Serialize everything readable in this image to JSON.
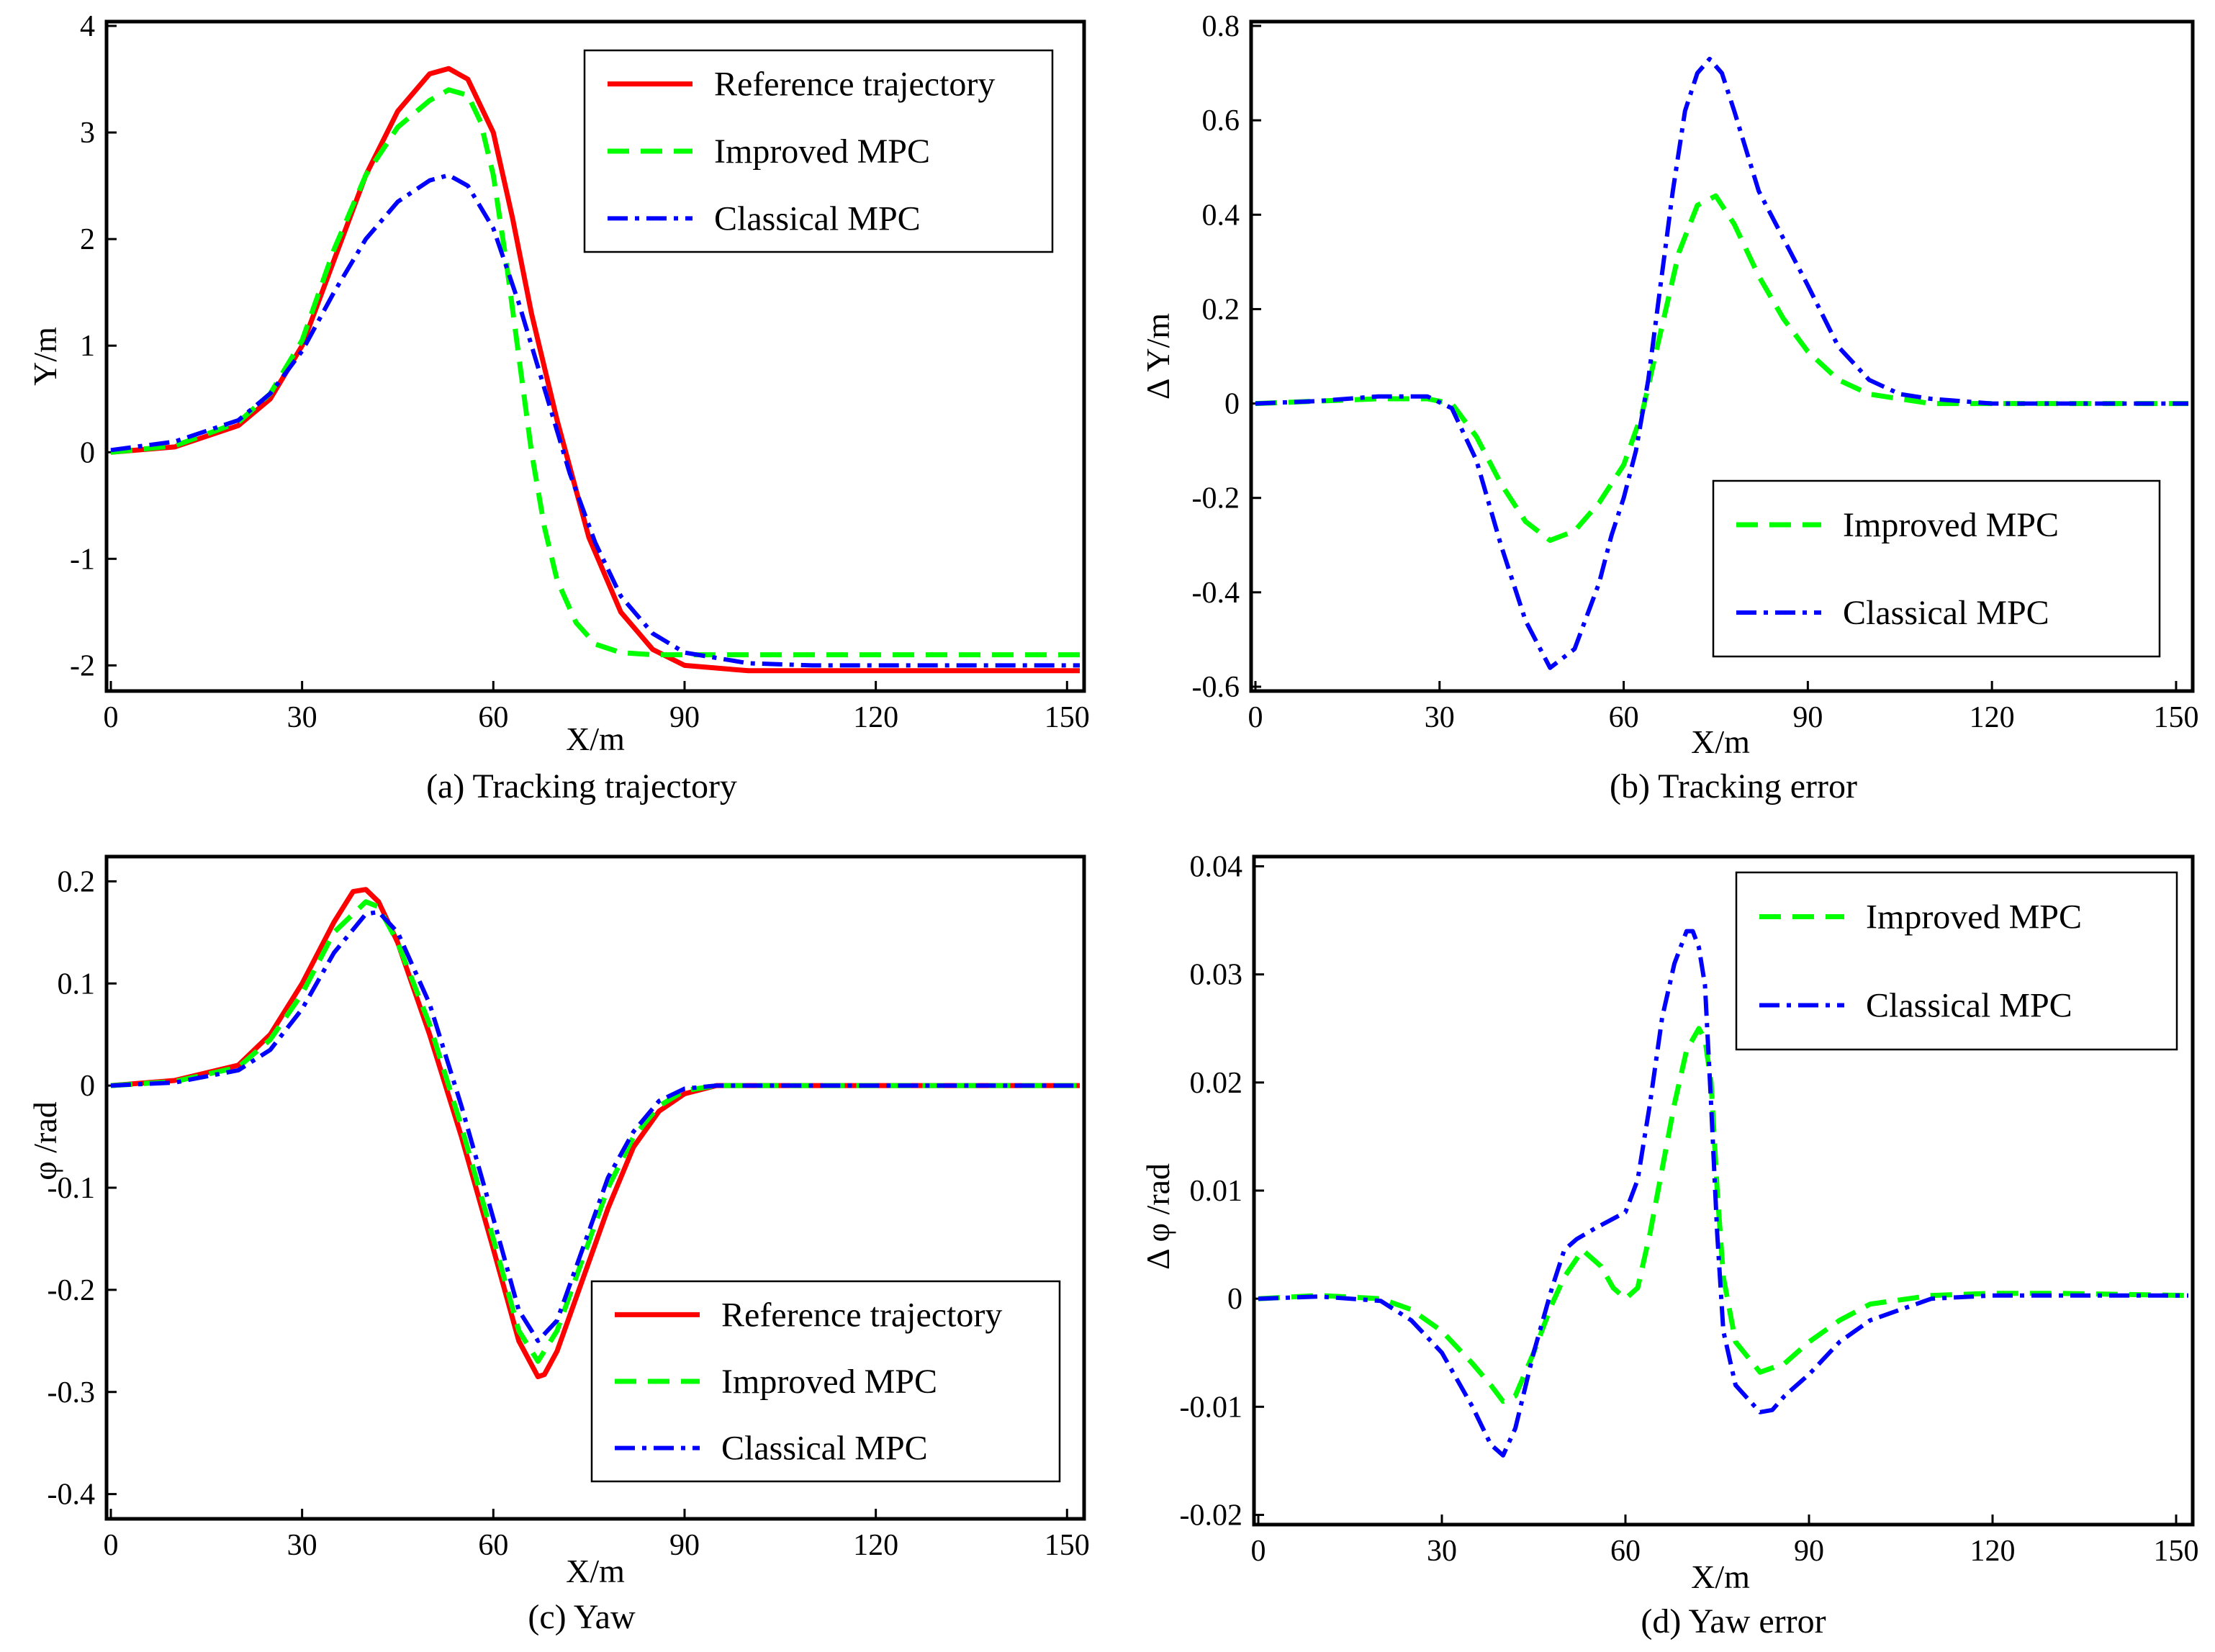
{
  "figure": {
    "series_styles": [
      {
        "name": "Reference trajectory",
        "color": "#ff0000",
        "dash": "solid"
      },
      {
        "name": "Improved MPC",
        "color": "#00ff00",
        "dash": "dash"
      },
      {
        "name": "Classical MPC",
        "color": "#0000ff",
        "dash": "dashdot"
      }
    ]
  },
  "chart_data": [
    {
      "id": "a",
      "type": "line",
      "caption": "(a) Tracking trajectory",
      "xlabel": "X/m",
      "ylabel": "Y/m",
      "xlim": [
        0,
        152
      ],
      "ylim": [
        -2.2,
        4
      ],
      "xticks": [
        0,
        30,
        60,
        90,
        120,
        150
      ],
      "yticks": [
        -2,
        -1,
        0,
        1,
        2,
        3,
        4
      ],
      "ytick_labels": [
        "-2",
        "-1",
        "0",
        "1",
        "2",
        "3",
        "4"
      ],
      "legend": {
        "entries": [
          "Reference trajectory",
          "Improved MPC",
          "Classical MPC"
        ],
        "position": "top-right"
      },
      "series": [
        {
          "name": "Reference trajectory",
          "x": [
            0,
            10,
            20,
            25,
            30,
            35,
            40,
            45,
            50,
            53,
            56,
            60,
            63,
            66,
            70,
            75,
            80,
            85,
            90,
            100,
            110,
            120,
            152
          ],
          "y": [
            0,
            0.05,
            0.25,
            0.5,
            1.0,
            1.8,
            2.6,
            3.2,
            3.55,
            3.6,
            3.5,
            3.0,
            2.2,
            1.3,
            0.3,
            -0.8,
            -1.5,
            -1.85,
            -2.0,
            -2.05,
            -2.05,
            -2.05,
            -2.05
          ]
        },
        {
          "name": "Improved MPC",
          "x": [
            0,
            10,
            20,
            25,
            30,
            35,
            40,
            45,
            50,
            53,
            56,
            58,
            60,
            62,
            64,
            66,
            68,
            70,
            73,
            76,
            80,
            85,
            90,
            100,
            110,
            120,
            152
          ],
          "y": [
            0,
            0.06,
            0.28,
            0.55,
            1.05,
            1.9,
            2.6,
            3.05,
            3.3,
            3.4,
            3.35,
            3.1,
            2.6,
            1.8,
            0.9,
            0.0,
            -0.7,
            -1.2,
            -1.6,
            -1.8,
            -1.88,
            -1.9,
            -1.9,
            -1.9,
            -1.9,
            -1.9,
            -1.9
          ]
        },
        {
          "name": "Classical MPC",
          "x": [
            0,
            10,
            20,
            25,
            30,
            35,
            40,
            45,
            50,
            53,
            56,
            60,
            64,
            68,
            72,
            76,
            80,
            85,
            90,
            100,
            110,
            120,
            152
          ],
          "y": [
            0.02,
            0.1,
            0.3,
            0.55,
            0.95,
            1.5,
            2.0,
            2.35,
            2.55,
            2.6,
            2.5,
            2.1,
            1.4,
            0.6,
            -0.2,
            -0.85,
            -1.35,
            -1.7,
            -1.88,
            -1.98,
            -2.0,
            -2.0,
            -2.0
          ]
        }
      ]
    },
    {
      "id": "b",
      "type": "line",
      "caption": "(b) Tracking error",
      "xlabel": "X/m",
      "ylabel": "Δ Y/m",
      "xlim": [
        0,
        152
      ],
      "ylim": [
        -0.6,
        0.8
      ],
      "xticks": [
        0,
        30,
        60,
        90,
        120,
        150
      ],
      "yticks": [
        -0.6,
        -0.4,
        -0.2,
        0,
        0.2,
        0.4,
        0.6,
        0.8
      ],
      "ytick_labels": [
        "-0.6",
        "-0.4",
        "-0.2",
        "0",
        "0.2",
        "0.4",
        "0.6",
        "0.8"
      ],
      "legend": {
        "entries": [
          "Improved MPC",
          "Classical MPC"
        ],
        "position": "bottom-right"
      },
      "series": [
        {
          "name": "Improved MPC",
          "x": [
            0,
            10,
            20,
            28,
            32,
            36,
            40,
            44,
            48,
            52,
            56,
            60,
            63,
            66,
            69,
            72,
            75,
            78,
            82,
            86,
            90,
            95,
            100,
            110,
            120,
            152
          ],
          "y": [
            0,
            0.005,
            0.01,
            0.01,
            0,
            -0.07,
            -0.17,
            -0.25,
            -0.29,
            -0.27,
            -0.21,
            -0.13,
            -0.02,
            0.15,
            0.32,
            0.42,
            0.44,
            0.38,
            0.27,
            0.18,
            0.11,
            0.05,
            0.02,
            0,
            0,
            0
          ]
        },
        {
          "name": "Classical MPC",
          "x": [
            0,
            10,
            20,
            28,
            32,
            36,
            40,
            44,
            48,
            52,
            56,
            58,
            60,
            62,
            64,
            66,
            68,
            70,
            72,
            74,
            76,
            78,
            82,
            86,
            90,
            95,
            100,
            105,
            110,
            120,
            152
          ],
          "y": [
            0,
            0.005,
            0.015,
            0.015,
            -0.01,
            -0.12,
            -0.3,
            -0.46,
            -0.56,
            -0.52,
            -0.38,
            -0.28,
            -0.2,
            -0.1,
            0.05,
            0.25,
            0.45,
            0.62,
            0.7,
            0.73,
            0.7,
            0.62,
            0.45,
            0.35,
            0.25,
            0.12,
            0.05,
            0.02,
            0.01,
            0,
            0
          ]
        }
      ]
    },
    {
      "id": "c",
      "type": "line",
      "caption": "(c) Yaw",
      "xlabel": "X/m",
      "ylabel": "φ /rad",
      "xlim": [
        0,
        152
      ],
      "ylim": [
        -0.42,
        0.22
      ],
      "xticks": [
        0,
        30,
        60,
        90,
        120,
        150
      ],
      "yticks": [
        -0.4,
        -0.3,
        -0.2,
        -0.1,
        0,
        0.1,
        0.2
      ],
      "ytick_labels": [
        "-0.4",
        "-0.3",
        "-0.2",
        "-0.1",
        "0",
        "0.1",
        "0.2"
      ],
      "legend": {
        "entries": [
          "Reference trajectory",
          "Improved MPC",
          "Classical MPC"
        ],
        "position": "bottom-right"
      },
      "series": [
        {
          "name": "Reference trajectory",
          "x": [
            0,
            10,
            20,
            25,
            30,
            35,
            38,
            40,
            42,
            45,
            50,
            55,
            60,
            64,
            67,
            68,
            70,
            74,
            78,
            82,
            86,
            90,
            95,
            100,
            152
          ],
          "y": [
            0,
            0.005,
            0.02,
            0.05,
            0.1,
            0.16,
            0.19,
            0.192,
            0.18,
            0.14,
            0.05,
            -0.05,
            -0.16,
            -0.25,
            -0.285,
            -0.283,
            -0.26,
            -0.19,
            -0.12,
            -0.06,
            -0.025,
            -0.008,
            0,
            0,
            0
          ]
        },
        {
          "name": "Improved MPC",
          "x": [
            0,
            10,
            20,
            25,
            30,
            35,
            40,
            42,
            45,
            50,
            55,
            60,
            64,
            67,
            70,
            74,
            78,
            82,
            86,
            90,
            95,
            100,
            152
          ],
          "y": [
            0,
            0.004,
            0.018,
            0.045,
            0.09,
            0.15,
            0.18,
            0.175,
            0.14,
            0.06,
            -0.04,
            -0.15,
            -0.24,
            -0.27,
            -0.24,
            -0.17,
            -0.1,
            -0.05,
            -0.02,
            -0.005,
            0,
            0,
            0
          ]
        },
        {
          "name": "Classical MPC",
          "x": [
            0,
            10,
            20,
            25,
            30,
            35,
            40,
            42,
            45,
            50,
            55,
            60,
            64,
            67,
            70,
            74,
            78,
            82,
            86,
            90,
            95,
            100,
            152
          ],
          "y": [
            0,
            0.003,
            0.015,
            0.035,
            0.075,
            0.13,
            0.168,
            0.17,
            0.15,
            0.08,
            -0.02,
            -0.13,
            -0.22,
            -0.25,
            -0.23,
            -0.16,
            -0.09,
            -0.045,
            -0.015,
            -0.003,
            0,
            0,
            0
          ]
        }
      ]
    },
    {
      "id": "d",
      "type": "line",
      "caption": "(d) Yaw error",
      "xlabel": "X/m",
      "ylabel": "Δ φ /rad",
      "xlim": [
        0,
        152
      ],
      "ylim": [
        -0.0205,
        0.0405
      ],
      "xticks": [
        0,
        30,
        60,
        90,
        120,
        150
      ],
      "yticks": [
        -0.02,
        -0.01,
        0,
        0.01,
        0.02,
        0.03,
        0.04
      ],
      "ytick_labels": [
        "-0.02",
        "-0.01",
        "0",
        "0.01",
        "0.02",
        "0.03",
        "0.04"
      ],
      "legend": {
        "entries": [
          "Improved MPC",
          "Classical MPC"
        ],
        "position": "top-right"
      },
      "series": [
        {
          "name": "Improved MPC",
          "x": [
            0,
            10,
            20,
            25,
            30,
            35,
            38,
            40,
            42,
            45,
            48,
            50,
            53,
            56,
            58,
            60,
            62,
            64,
            66,
            68,
            70,
            72,
            73,
            74,
            75,
            76,
            78,
            82,
            86,
            90,
            95,
            100,
            110,
            120,
            130,
            152
          ],
          "y": [
            0,
            0.0003,
            0,
            -0.001,
            -0.003,
            -0.006,
            -0.008,
            -0.0095,
            -0.009,
            -0.005,
            -0.0005,
            0.002,
            0.0045,
            0.003,
            0.001,
            0,
            0.001,
            0.006,
            0.012,
            0.018,
            0.023,
            0.025,
            0.024,
            0.02,
            0.01,
            0.002,
            -0.004,
            -0.0068,
            -0.006,
            -0.004,
            -0.002,
            -0.0005,
            0.0003,
            0.0005,
            0.0005,
            0.0003
          ]
        },
        {
          "name": "Classical MPC",
          "x": [
            0,
            10,
            20,
            25,
            30,
            35,
            38,
            40,
            42,
            45,
            48,
            50,
            52,
            55,
            60,
            62,
            64,
            66,
            68,
            70,
            71,
            72,
            73,
            74,
            75,
            76,
            78,
            82,
            84,
            86,
            90,
            95,
            100,
            110,
            120,
            130,
            152
          ],
          "y": [
            0,
            0.0002,
            -0.0002,
            -0.002,
            -0.005,
            -0.01,
            -0.0135,
            -0.0145,
            -0.012,
            -0.005,
            0.001,
            0.0045,
            0.0055,
            0.0065,
            0.008,
            0.011,
            0.018,
            0.026,
            0.031,
            0.034,
            0.034,
            0.0325,
            0.029,
            0.018,
            0.006,
            -0.003,
            -0.008,
            -0.0105,
            -0.0103,
            -0.009,
            -0.007,
            -0.004,
            -0.002,
            0,
            0.0003,
            0.0003,
            0.0003
          ]
        }
      ]
    }
  ]
}
